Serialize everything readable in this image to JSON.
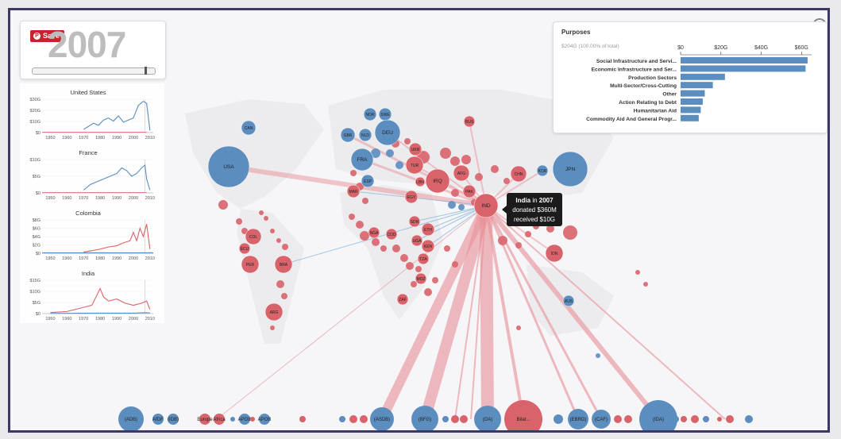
{
  "app": {
    "save_label": "Save",
    "year": "2007",
    "year_progress": 0.93
  },
  "chart_data": [
    {
      "type": "scatter",
      "name": "flow-map",
      "legend_colors": {
        "donor": "#5b8dbf",
        "recipient": "#d9636b",
        "flow_out": "#e88f96",
        "flow_in": "#8ab8dc"
      },
      "nodes": [
        {
          "label": "USA",
          "color": "blue"
        },
        {
          "label": "CAN",
          "color": "blue"
        },
        {
          "label": "GBR",
          "color": "blue"
        },
        {
          "label": "NOR",
          "color": "blue"
        },
        {
          "label": "SWE",
          "color": "blue"
        },
        {
          "label": "DEU",
          "color": "blue"
        },
        {
          "label": "NLD",
          "color": "blue"
        },
        {
          "label": "FRA",
          "color": "blue"
        },
        {
          "label": "ESP",
          "color": "blue"
        },
        {
          "label": "RUS",
          "color": "red"
        },
        {
          "label": "UKR",
          "color": "red"
        },
        {
          "label": "TUR",
          "color": "red"
        },
        {
          "label": "IRQ",
          "color": "red"
        },
        {
          "label": "AFG",
          "color": "red"
        },
        {
          "label": "PAK",
          "color": "red"
        },
        {
          "label": "IND",
          "color": "red"
        },
        {
          "label": "CHN",
          "color": "red"
        },
        {
          "label": "KOR",
          "color": "blue"
        },
        {
          "label": "JPN",
          "color": "blue"
        },
        {
          "label": "EGY",
          "color": "red"
        },
        {
          "label": "MAR",
          "color": "red"
        },
        {
          "label": "LBN",
          "color": "red"
        },
        {
          "label": "SDN",
          "color": "red"
        },
        {
          "label": "ETH",
          "color": "red"
        },
        {
          "label": "UGA",
          "color": "red"
        },
        {
          "label": "KEN",
          "color": "red"
        },
        {
          "label": "TZA",
          "color": "red"
        },
        {
          "label": "MOZ",
          "color": "red"
        },
        {
          "label": "ZAF",
          "color": "red"
        },
        {
          "label": "NGA",
          "color": "red"
        },
        {
          "label": "COD",
          "color": "red"
        },
        {
          "label": "COL",
          "color": "red"
        },
        {
          "label": "ECU",
          "color": "red"
        },
        {
          "label": "PER",
          "color": "red"
        },
        {
          "label": "BRA",
          "color": "red"
        },
        {
          "label": "ARG",
          "color": "red"
        },
        {
          "label": "IDN",
          "color": "red"
        },
        {
          "label": "AUS",
          "color": "blue"
        }
      ],
      "institutions": [
        "(ADB)",
        "AfDF",
        "(IDB)",
        "Europe",
        "Africa",
        "APOB",
        "APOB",
        "(ASDB)",
        "(BFG)",
        "(OA)",
        "Bilat...",
        "(EBRD)",
        "(CAF)",
        "(IDA)"
      ]
    },
    {
      "type": "bar",
      "name": "purposes",
      "title": "Purposes",
      "subtitle": "$204G (100.00% of total)",
      "xticks": [
        "$0",
        "$20G",
        "$40G",
        "$60G"
      ],
      "xlim": [
        0,
        65
      ],
      "categories": [
        "Social Infrastructure and Servi...",
        "Economic Infrastructure and Ser...",
        "Production Sectors",
        "Multi-Sector/Cross-Cutting",
        "Other",
        "Action Relating to Debt",
        "Humanitarian Aid",
        "Commodity Aid And General Progr..."
      ],
      "values": [
        63,
        62,
        22,
        16,
        12,
        11,
        10,
        9
      ],
      "color": "#5b8dbf"
    },
    {
      "type": "line",
      "name": "country-series",
      "xticks": [
        "1950",
        "1960",
        "1970",
        "1980",
        "1990",
        "2000",
        "2010"
      ],
      "xlim": [
        1945,
        2012
      ],
      "charts": [
        {
          "title": "United States",
          "yticks": [
            "$0",
            "$10G",
            "$20G",
            "$30G"
          ],
          "ylim": [
            0,
            32
          ],
          "donated_x": [
            1970,
            1973,
            1976,
            1979,
            1982,
            1985,
            1988,
            1991,
            1994,
            1997,
            2000,
            2003,
            2006,
            2008,
            2010
          ],
          "donated_y": [
            3,
            6,
            9,
            7,
            12,
            14,
            11,
            16,
            10,
            12,
            14,
            26,
            30,
            28,
            2
          ]
        },
        {
          "title": "France",
          "yticks": [
            "$0",
            "$5G",
            "$10G"
          ],
          "ylim": [
            0,
            12
          ],
          "donated_x": [
            1970,
            1974,
            1978,
            1982,
            1986,
            1990,
            1993,
            1996,
            1999,
            2002,
            2005,
            2007,
            2008,
            2010
          ],
          "donated_y": [
            1,
            3,
            4,
            5,
            6,
            7,
            9,
            8,
            6,
            7,
            9,
            10,
            5,
            1
          ]
        },
        {
          "title": "Colombia",
          "yticks": [
            "$0",
            "$2G",
            "$4G",
            "$6G",
            "$8G"
          ],
          "ylim": [
            0,
            8
          ],
          "received_x": [
            1970,
            1975,
            1980,
            1985,
            1990,
            1994,
            1998,
            2000,
            2002,
            2004,
            2006,
            2008,
            2010
          ],
          "received_y": [
            0.3,
            0.6,
            1,
            1.5,
            1.8,
            2.5,
            3,
            5,
            3,
            6,
            4,
            7,
            1
          ]
        },
        {
          "title": "India",
          "yticks": [
            "$0",
            "$5G",
            "$10G",
            "$15G"
          ],
          "ylim": [
            0,
            16
          ],
          "received_x": [
            1950,
            1960,
            1965,
            1970,
            1975,
            1980,
            1982,
            1985,
            1990,
            1995,
            2000,
            2005,
            2008,
            2010
          ],
          "received_y": [
            0.5,
            1,
            2,
            3,
            4,
            12,
            8,
            6,
            7,
            5,
            4,
            5,
            6,
            2
          ],
          "donated_x": [
            1950,
            1980,
            2000,
            2007,
            2010
          ],
          "donated_y": [
            0.1,
            0.2,
            0.2,
            0.4,
            0.3
          ]
        }
      ]
    }
  ],
  "tooltip": {
    "country": "India",
    "in": "in",
    "year": "2007",
    "donated": "donated $360M",
    "received": "received $10G"
  }
}
